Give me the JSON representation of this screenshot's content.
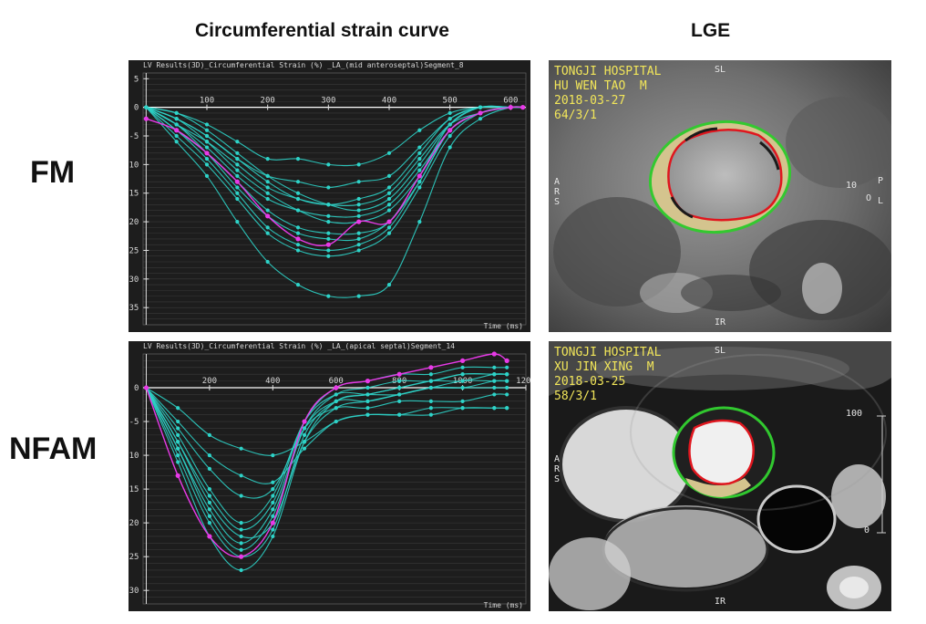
{
  "headers": {
    "strain": "Circumferential strain curve",
    "lge": "LGE"
  },
  "rows": [
    {
      "label": "FM",
      "chart_header": "LV Results(3D)_Circumferential Strain (%) _LA_(mid anteroseptal)Segment_8",
      "chart_footer": "Time (ms)",
      "mri": {
        "hospital": "TONGJI HOSPITAL",
        "patient": "HU WEN TAO  M",
        "date": "2018-03-27",
        "series": "64/3/1",
        "orientation_top": "SL",
        "orientation_bottom": "IR",
        "left_letters": [
          "A",
          "R",
          "S"
        ],
        "right_number": "10",
        "right_letters": [
          "P",
          "O",
          "L"
        ]
      }
    },
    {
      "label": "NFAM",
      "chart_header": "LV Results(3D)_Circumferential Strain (%) _LA_(apical septal)Segment_14",
      "chart_footer": "Time (ms)",
      "mri": {
        "hospital": "TONGJI HOSPITAL",
        "patient": "XU JIN XING  M",
        "date": "2018-03-25",
        "series": "58/3/1",
        "orientation_top": "SL",
        "orientation_bottom": "IR",
        "left_letters": [
          "A",
          "R",
          "S"
        ],
        "scale_top": "100",
        "scale_bottom": "0"
      }
    }
  ],
  "colors": {
    "curve": "#2ed3c8",
    "highlight": "#e83ae8",
    "epicardial_contour": "#31c82f",
    "endocardial_contour": "#e0161e",
    "lge_fill": "#d2c28a",
    "overlay_text": "#f2e65a"
  },
  "chart_data": [
    {
      "type": "line",
      "title": "LV Results(3D)_Circumferential Strain (%) _LA_(mid anteroseptal)Segment_8",
      "xlabel": "Time (ms)",
      "ylabel": "",
      "xlim": [
        -5,
        625
      ],
      "ylim": [
        -38,
        6
      ],
      "xticks": [
        100,
        200,
        300,
        400,
        500,
        600
      ],
      "yticks": [
        5,
        0,
        -5,
        -10,
        -15,
        -20,
        -25,
        -30,
        -35
      ],
      "x": [
        0,
        50,
        100,
        150,
        200,
        250,
        300,
        350,
        400,
        450,
        500,
        550,
        600,
        620
      ],
      "series": [
        {
          "values": [
            0,
            -2,
            -5,
            -9,
            -12,
            -13,
            -14,
            -13,
            -12,
            -7,
            -2,
            0,
            0,
            0
          ]
        },
        {
          "values": [
            0,
            -3,
            -6,
            -10,
            -14,
            -16,
            -17,
            -17,
            -15,
            -9,
            -3,
            -1,
            0,
            0
          ]
        },
        {
          "values": [
            0,
            -1,
            -3,
            -6,
            -9,
            -9,
            -10,
            -10,
            -8,
            -4,
            -1,
            0,
            0,
            0
          ]
        },
        {
          "values": [
            0,
            -3,
            -7,
            -12,
            -16,
            -18,
            -19,
            -19,
            -17,
            -11,
            -4,
            -1,
            0,
            0
          ]
        },
        {
          "values": [
            0,
            -2,
            -6,
            -11,
            -15,
            -18,
            -20,
            -20,
            -18,
            -12,
            -4,
            -1,
            0,
            0
          ]
        },
        {
          "values": [
            0,
            -4,
            -8,
            -13,
            -18,
            -21,
            -22,
            -22,
            -20,
            -12,
            -3,
            0,
            0,
            0
          ]
        },
        {
          "values": [
            0,
            -3,
            -8,
            -14,
            -19,
            -22,
            -23,
            -23,
            -20,
            -13,
            -4,
            -1,
            0,
            0
          ]
        },
        {
          "values": [
            0,
            -4,
            -9,
            -15,
            -21,
            -24,
            -25,
            -24,
            -21,
            -13,
            -4,
            -1,
            0,
            0
          ]
        },
        {
          "values": [
            0,
            -5,
            -10,
            -16,
            -22,
            -25,
            -26,
            -25,
            -22,
            -14,
            -5,
            -1,
            0,
            0
          ]
        },
        {
          "values": [
            0,
            -6,
            -12,
            -20,
            -27,
            -31,
            -33,
            -33,
            -31,
            -20,
            -7,
            -2,
            0,
            0
          ]
        },
        {
          "values": [
            0,
            -1,
            -4,
            -8,
            -12,
            -15,
            -17,
            -18,
            -16,
            -10,
            -3,
            0,
            0,
            0
          ]
        },
        {
          "values": [
            0,
            -2,
            -5,
            -9,
            -13,
            -16,
            -17,
            -16,
            -14,
            -8,
            -2,
            0,
            0,
            0
          ]
        },
        {
          "name": "highlight",
          "values": [
            -2,
            -4,
            -8,
            -13,
            -19,
            -23,
            -24,
            -20,
            -20,
            -12,
            -4,
            -1,
            0,
            0
          ]
        }
      ],
      "grid": true
    },
    {
      "type": "line",
      "title": "LV Results(3D)_Circumferential Strain (%) _LA_(apical septal)Segment_14",
      "xlabel": "Time (ms)",
      "ylabel": "",
      "xlim": [
        -10,
        1200
      ],
      "ylim": [
        -32,
        5
      ],
      "xticks": [
        200,
        400,
        600,
        800,
        1000,
        1200
      ],
      "yticks": [
        0,
        -5,
        -10,
        -15,
        -20,
        -25,
        -30
      ],
      "x": [
        0,
        100,
        200,
        300,
        400,
        500,
        600,
        700,
        800,
        900,
        1000,
        1100,
        1140
      ],
      "series": [
        {
          "values": [
            0,
            -7,
            -15,
            -20,
            -16,
            -5,
            -1,
            -1,
            -1,
            0,
            0,
            0,
            0
          ]
        },
        {
          "values": [
            0,
            -9,
            -18,
            -23,
            -18,
            -6,
            -2,
            -2,
            -1,
            0,
            1,
            1,
            1
          ]
        },
        {
          "values": [
            0,
            -8,
            -17,
            -22,
            -20,
            -8,
            -3,
            -2,
            -1,
            0,
            0,
            1,
            1
          ]
        },
        {
          "values": [
            0,
            -10,
            -20,
            -25,
            -21,
            -7,
            -2,
            -1,
            0,
            1,
            1,
            2,
            2
          ]
        },
        {
          "values": [
            0,
            -11,
            -22,
            -27,
            -22,
            -8,
            -2,
            -1,
            0,
            1,
            2,
            2,
            2
          ]
        },
        {
          "values": [
            0,
            -6,
            -12,
            -16,
            -15,
            -6,
            -3,
            -3,
            -2,
            -2,
            -2,
            -1,
            -1
          ]
        },
        {
          "values": [
            0,
            -5,
            -10,
            -13,
            -14,
            -9,
            -5,
            -4,
            -4,
            -3,
            -3,
            -3,
            -3
          ]
        },
        {
          "values": [
            0,
            -3,
            -7,
            -9,
            -10,
            -8,
            -5,
            -4,
            -4,
            -4,
            -3,
            -3,
            -3
          ]
        },
        {
          "values": [
            0,
            -9,
            -19,
            -24,
            -19,
            -6,
            -1,
            0,
            1,
            1,
            2,
            2,
            2
          ]
        },
        {
          "values": [
            0,
            -8,
            -16,
            -21,
            -17,
            -5,
            0,
            1,
            2,
            2,
            3,
            3,
            3
          ]
        },
        {
          "name": "highlight",
          "values": [
            0,
            -13,
            -22,
            -25,
            -20,
            -5,
            0,
            1,
            2,
            3,
            4,
            5,
            4
          ]
        }
      ],
      "grid": true
    }
  ]
}
